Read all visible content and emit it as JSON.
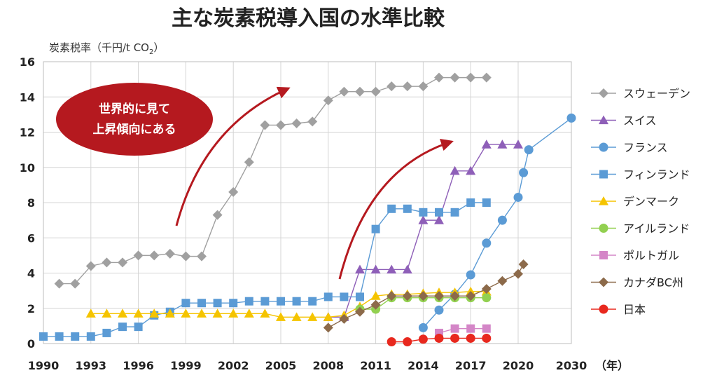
{
  "chart_data": {
    "type": "line",
    "title": "主な炭素税導入国の水準比較",
    "ylabel": "炭素税率（千円/t CO",
    "ylabel_sub": "2",
    "ylabel_close": "）",
    "xunit": "（年）",
    "ylim": [
      0,
      16
    ],
    "xlim": [
      1990,
      2030
    ],
    "xticks": [
      "1990",
      "1993",
      "1996",
      "1999",
      "2002",
      "2005",
      "2008",
      "2011",
      "2014",
      "2017",
      "2020",
      "2030"
    ],
    "yticks": [
      "0",
      "2",
      "4",
      "6",
      "8",
      "10",
      "12",
      "14",
      "16"
    ],
    "grid": true,
    "legend_position": "right",
    "annotation": [
      "世界的に見て",
      "上昇傾向にある"
    ],
    "series": [
      {
        "name": "スウェーデン",
        "color": "#a0a0a0",
        "marker": "diamond",
        "points": [
          [
            1991,
            3.4
          ],
          [
            1992,
            3.4
          ],
          [
            1993,
            4.4
          ],
          [
            1994,
            4.6
          ],
          [
            1995,
            4.6
          ],
          [
            1996,
            5.0
          ],
          [
            1997,
            5.0
          ],
          [
            1998,
            5.1
          ],
          [
            1999,
            4.95
          ],
          [
            2000,
            4.95
          ],
          [
            2001,
            7.3
          ],
          [
            2002,
            8.6
          ],
          [
            2003,
            10.3
          ],
          [
            2004,
            12.4
          ],
          [
            2005,
            12.4
          ],
          [
            2006,
            12.5
          ],
          [
            2007,
            12.6
          ],
          [
            2008,
            13.8
          ],
          [
            2009,
            14.3
          ],
          [
            2010,
            14.3
          ],
          [
            2011,
            14.3
          ],
          [
            2012,
            14.6
          ],
          [
            2013,
            14.6
          ],
          [
            2014,
            14.6
          ],
          [
            2015,
            15.1
          ],
          [
            2016,
            15.1
          ],
          [
            2017,
            15.1
          ],
          [
            2018,
            15.1
          ]
        ]
      },
      {
        "name": "スイス",
        "color": "#8e5fb8",
        "marker": "triangle",
        "points": [
          [
            2008,
            1.5
          ],
          [
            2009,
            1.5
          ],
          [
            2010,
            4.2
          ],
          [
            2011,
            4.2
          ],
          [
            2012,
            4.2
          ],
          [
            2013,
            4.2
          ],
          [
            2014,
            7.0
          ],
          [
            2015,
            7.0
          ],
          [
            2016,
            9.8
          ],
          [
            2017,
            9.8
          ],
          [
            2018,
            11.3
          ],
          [
            2019,
            11.3
          ],
          [
            2020,
            11.3
          ]
        ]
      },
      {
        "name": "フランス",
        "color": "#5b9bd5",
        "marker": "circle",
        "points": [
          [
            2014,
            0.9
          ],
          [
            2015,
            1.9
          ],
          [
            2016,
            2.8
          ],
          [
            2017,
            3.9
          ],
          [
            2018,
            5.7
          ],
          [
            2019,
            7.0
          ],
          [
            2020,
            8.3
          ],
          [
            2021,
            9.7
          ],
          [
            2022,
            11.0
          ],
          [
            2030,
            12.8
          ]
        ]
      },
      {
        "name": "フィンランド",
        "color": "#5b9bd5",
        "marker": "square",
        "points": [
          [
            1990,
            0.4
          ],
          [
            1991,
            0.4
          ],
          [
            1992,
            0.4
          ],
          [
            1993,
            0.4
          ],
          [
            1994,
            0.6
          ],
          [
            1995,
            0.95
          ],
          [
            1996,
            0.95
          ],
          [
            1997,
            1.6
          ],
          [
            1998,
            1.8
          ],
          [
            1999,
            2.3
          ],
          [
            2000,
            2.3
          ],
          [
            2001,
            2.3
          ],
          [
            2002,
            2.3
          ],
          [
            2003,
            2.4
          ],
          [
            2004,
            2.4
          ],
          [
            2005,
            2.4
          ],
          [
            2006,
            2.4
          ],
          [
            2007,
            2.4
          ],
          [
            2008,
            2.65
          ],
          [
            2009,
            2.65
          ],
          [
            2010,
            2.65
          ],
          [
            2011,
            6.5
          ],
          [
            2012,
            7.65
          ],
          [
            2013,
            7.65
          ],
          [
            2014,
            7.45
          ],
          [
            2015,
            7.45
          ],
          [
            2016,
            7.45
          ],
          [
            2017,
            8.0
          ],
          [
            2018,
            8.0
          ]
        ]
      },
      {
        "name": "デンマーク",
        "color": "#f5c400",
        "marker": "triangle",
        "points": [
          [
            1993,
            1.7
          ],
          [
            1994,
            1.7
          ],
          [
            1995,
            1.7
          ],
          [
            1996,
            1.7
          ],
          [
            1997,
            1.7
          ],
          [
            1998,
            1.7
          ],
          [
            1999,
            1.7
          ],
          [
            2000,
            1.7
          ],
          [
            2001,
            1.7
          ],
          [
            2002,
            1.7
          ],
          [
            2003,
            1.7
          ],
          [
            2004,
            1.7
          ],
          [
            2005,
            1.5
          ],
          [
            2006,
            1.5
          ],
          [
            2007,
            1.5
          ],
          [
            2008,
            1.5
          ],
          [
            2009,
            1.6
          ],
          [
            2010,
            2.1
          ],
          [
            2011,
            2.7
          ],
          [
            2012,
            2.8
          ],
          [
            2013,
            2.8
          ],
          [
            2014,
            2.85
          ],
          [
            2015,
            2.9
          ],
          [
            2016,
            2.9
          ],
          [
            2017,
            2.95
          ],
          [
            2018,
            2.95
          ]
        ]
      },
      {
        "name": "アイルランド",
        "color": "#92d050",
        "marker": "circle",
        "points": [
          [
            2010,
            1.95
          ],
          [
            2011,
            1.95
          ],
          [
            2012,
            2.6
          ],
          [
            2013,
            2.6
          ],
          [
            2014,
            2.6
          ],
          [
            2015,
            2.6
          ],
          [
            2016,
            2.6
          ],
          [
            2017,
            2.6
          ],
          [
            2018,
            2.6
          ]
        ]
      },
      {
        "name": "ポルトガル",
        "color": "#d486c7",
        "marker": "square",
        "points": [
          [
            2015,
            0.6
          ],
          [
            2016,
            0.85
          ],
          [
            2017,
            0.85
          ],
          [
            2018,
            0.85
          ]
        ]
      },
      {
        "name": "カナダBC州",
        "color": "#8c6a4a",
        "marker": "diamond",
        "points": [
          [
            2008,
            0.9
          ],
          [
            2009,
            1.4
          ],
          [
            2010,
            1.8
          ],
          [
            2011,
            2.2
          ],
          [
            2012,
            2.7
          ],
          [
            2013,
            2.7
          ],
          [
            2014,
            2.7
          ],
          [
            2015,
            2.7
          ],
          [
            2016,
            2.7
          ],
          [
            2017,
            2.7
          ],
          [
            2018,
            3.1
          ],
          [
            2019,
            3.55
          ],
          [
            2020,
            3.95
          ],
          [
            2021,
            4.5
          ]
        ]
      },
      {
        "name": "日本",
        "color": "#e8281e",
        "marker": "circle",
        "points": [
          [
            2012,
            0.1
          ],
          [
            2013,
            0.1
          ],
          [
            2014,
            0.25
          ],
          [
            2015,
            0.3
          ],
          [
            2016,
            0.3
          ],
          [
            2017,
            0.3
          ],
          [
            2018,
            0.3
          ]
        ]
      }
    ]
  }
}
